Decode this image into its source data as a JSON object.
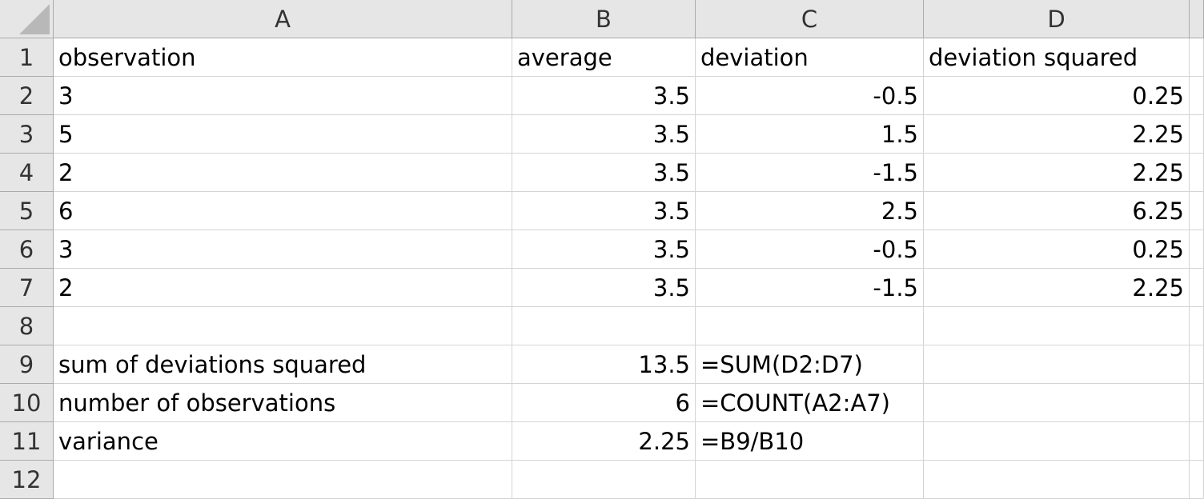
{
  "columns": [
    "A",
    "B",
    "C",
    "D"
  ],
  "rows": [
    {
      "num": "1",
      "cells": [
        {
          "v": "observation",
          "t": "txt"
        },
        {
          "v": "average",
          "t": "txt"
        },
        {
          "v": "deviation",
          "t": "txt"
        },
        {
          "v": "deviation squared",
          "t": "txt"
        }
      ]
    },
    {
      "num": "2",
      "cells": [
        {
          "v": "3",
          "t": "txt"
        },
        {
          "v": "3.5",
          "t": "num"
        },
        {
          "v": "-0.5",
          "t": "num"
        },
        {
          "v": "0.25",
          "t": "num"
        }
      ]
    },
    {
      "num": "3",
      "cells": [
        {
          "v": "5",
          "t": "txt"
        },
        {
          "v": "3.5",
          "t": "num"
        },
        {
          "v": "1.5",
          "t": "num"
        },
        {
          "v": "2.25",
          "t": "num"
        }
      ]
    },
    {
      "num": "4",
      "cells": [
        {
          "v": "2",
          "t": "txt"
        },
        {
          "v": "3.5",
          "t": "num"
        },
        {
          "v": "-1.5",
          "t": "num"
        },
        {
          "v": "2.25",
          "t": "num"
        }
      ]
    },
    {
      "num": "5",
      "cells": [
        {
          "v": "6",
          "t": "txt"
        },
        {
          "v": "3.5",
          "t": "num"
        },
        {
          "v": "2.5",
          "t": "num"
        },
        {
          "v": "6.25",
          "t": "num"
        }
      ]
    },
    {
      "num": "6",
      "cells": [
        {
          "v": "3",
          "t": "txt"
        },
        {
          "v": "3.5",
          "t": "num"
        },
        {
          "v": "-0.5",
          "t": "num"
        },
        {
          "v": "0.25",
          "t": "num"
        }
      ]
    },
    {
      "num": "7",
      "cells": [
        {
          "v": "2",
          "t": "txt"
        },
        {
          "v": "3.5",
          "t": "num"
        },
        {
          "v": "-1.5",
          "t": "num"
        },
        {
          "v": "2.25",
          "t": "num"
        }
      ]
    },
    {
      "num": "8",
      "cells": [
        {
          "v": "",
          "t": "txt"
        },
        {
          "v": "",
          "t": "txt"
        },
        {
          "v": "",
          "t": "txt"
        },
        {
          "v": "",
          "t": "txt"
        }
      ]
    },
    {
      "num": "9",
      "cells": [
        {
          "v": "sum of deviations squared",
          "t": "txt"
        },
        {
          "v": "13.5",
          "t": "num"
        },
        {
          "v": "=SUM(D2:D7)",
          "t": "txt"
        },
        {
          "v": "",
          "t": "txt"
        }
      ]
    },
    {
      "num": "10",
      "cells": [
        {
          "v": "number of observations",
          "t": "txt"
        },
        {
          "v": "6",
          "t": "num"
        },
        {
          "v": "=COUNT(A2:A7)",
          "t": "txt"
        },
        {
          "v": "",
          "t": "txt"
        }
      ]
    },
    {
      "num": "11",
      "cells": [
        {
          "v": "variance",
          "t": "txt"
        },
        {
          "v": "2.25",
          "t": "num"
        },
        {
          "v": "=B9/B10",
          "t": "txt"
        },
        {
          "v": "",
          "t": "txt"
        }
      ]
    },
    {
      "num": "12",
      "cells": [
        {
          "v": "",
          "t": "txt"
        },
        {
          "v": "",
          "t": "txt"
        },
        {
          "v": "",
          "t": "txt"
        },
        {
          "v": "",
          "t": "txt"
        }
      ]
    }
  ]
}
